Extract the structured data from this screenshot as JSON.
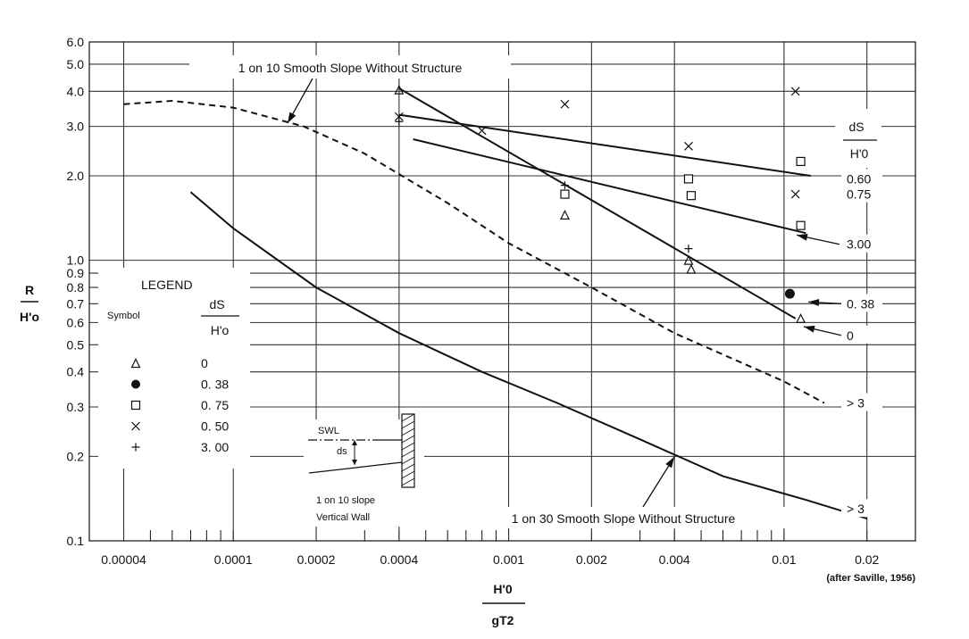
{
  "chart_data": {
    "type": "line",
    "x_scale": "log",
    "y_scale": "log",
    "xlim": [
      3e-05,
      0.03
    ],
    "ylim": [
      0.1,
      6.0
    ],
    "x_ticks": [
      "0.00004",
      "0.0001",
      "0.0002",
      "0.0004",
      "0.001",
      "0.002",
      "0.004",
      "0.01",
      "0.02"
    ],
    "x_tick_values": [
      4e-05,
      0.0001,
      0.0002,
      0.0004,
      0.001,
      0.002,
      0.004,
      0.01,
      0.02
    ],
    "y_ticks": [
      "0.1",
      "0.2",
      "0.3",
      "0.4",
      "0.5",
      "0.6",
      "0.7",
      "0.8",
      "0.9",
      "1.0",
      "2.0",
      "3.0",
      "4.0",
      "5.0",
      "6.0"
    ],
    "y_tick_values": [
      0.1,
      0.2,
      0.3,
      0.4,
      0.5,
      0.6,
      0.7,
      0.8,
      0.9,
      1.0,
      2.0,
      3.0,
      4.0,
      5.0,
      6.0
    ],
    "grid": true,
    "xlabel": {
      "numerator": "H'0",
      "denominator": "gT2"
    },
    "ylabel": {
      "numerator": "R",
      "denominator": "H'o"
    },
    "source_note": "(after Saville, 1956)",
    "right_header": {
      "numerator": "dS",
      "denominator": "H'0"
    },
    "series": [
      {
        "label": "0.60",
        "style": "solid",
        "x": [
          0.0004,
          0.0125
        ],
        "y": [
          3.3,
          2.0
        ]
      },
      {
        "label": "0.75",
        "style": "solid",
        "x": [
          0.00045,
          0.012
        ],
        "y": [
          2.7,
          1.25
        ]
      },
      {
        "label": "3.00",
        "style": "solid",
        "x": [
          0.0004,
          0.011
        ],
        "y": [
          4.1,
          0.62
        ]
      },
      {
        "label": "> 3",
        "style": "dashed",
        "x": [
          4e-05,
          6e-05,
          0.0001,
          0.00018,
          0.0003,
          0.0006,
          0.001,
          0.002,
          0.004,
          0.01,
          0.014
        ],
        "y": [
          3.6,
          3.7,
          3.5,
          3.0,
          2.4,
          1.6,
          1.15,
          0.8,
          0.55,
          0.37,
          0.31
        ]
      },
      {
        "label": "> 3",
        "style": "solid",
        "x": [
          7e-05,
          0.0001,
          0.0002,
          0.0004,
          0.0008,
          0.0015,
          0.003,
          0.006,
          0.012,
          0.02
        ],
        "y": [
          1.75,
          1.3,
          0.8,
          0.55,
          0.4,
          0.31,
          0.23,
          0.17,
          0.14,
          0.12
        ]
      }
    ],
    "line_labels": [
      {
        "text": "0.60",
        "y": 1.95
      },
      {
        "text": "0.75",
        "y": 1.72
      },
      {
        "text": "3.00",
        "y": 1.14
      },
      {
        "text": "0. 38",
        "y": 0.7
      },
      {
        "text": "0",
        "y": 0.54
      },
      {
        "text": "> 3",
        "y": 0.31
      },
      {
        "text": "> 3",
        "y": 0.13
      }
    ],
    "annotations": [
      {
        "text": "1 on 10 Smooth Slope Without Structure"
      },
      {
        "text": "1 on 30 Smooth Slope Without Structure"
      }
    ],
    "points": [
      {
        "symbol": "triangle",
        "x": 0.0004,
        "y": 4.05
      },
      {
        "symbol": "x",
        "x": 0.0004,
        "y": 3.25
      },
      {
        "symbol": "plus",
        "x": 0.0004,
        "y": 3.12
      },
      {
        "symbol": "x",
        "x": 0.0008,
        "y": 2.9
      },
      {
        "symbol": "x",
        "x": 0.0016,
        "y": 3.6
      },
      {
        "symbol": "plus",
        "x": 0.0016,
        "y": 1.85
      },
      {
        "symbol": "square",
        "x": 0.0016,
        "y": 1.72
      },
      {
        "symbol": "triangle",
        "x": 0.0016,
        "y": 1.45
      },
      {
        "symbol": "x",
        "x": 0.0045,
        "y": 2.55
      },
      {
        "symbol": "square",
        "x": 0.0045,
        "y": 1.95
      },
      {
        "symbol": "square",
        "x": 0.0046,
        "y": 1.7
      },
      {
        "symbol": "plus",
        "x": 0.0045,
        "y": 1.1
      },
      {
        "symbol": "triangle",
        "x": 0.0045,
        "y": 1.0
      },
      {
        "symbol": "triangle",
        "x": 0.0046,
        "y": 0.93
      },
      {
        "symbol": "x",
        "x": 0.011,
        "y": 4.0
      },
      {
        "symbol": "square",
        "x": 0.0115,
        "y": 2.25
      },
      {
        "symbol": "x",
        "x": 0.011,
        "y": 1.72
      },
      {
        "symbol": "square",
        "x": 0.0115,
        "y": 1.33
      },
      {
        "symbol": "dot",
        "x": 0.0105,
        "y": 0.76
      },
      {
        "symbol": "triangle",
        "x": 0.0115,
        "y": 0.62
      }
    ]
  },
  "legend": {
    "title": "LEGEND",
    "symbol_header": "Symbol",
    "ds_header": {
      "numerator": "dS",
      "denominator": "H'o"
    },
    "entries": [
      {
        "symbol": "triangle",
        "value": "0"
      },
      {
        "symbol": "dot",
        "value": "0. 38"
      },
      {
        "symbol": "square",
        "value": "0. 75"
      },
      {
        "symbol": "x",
        "value": "0. 50"
      },
      {
        "symbol": "plus",
        "value": "3. 00"
      }
    ]
  },
  "inset": {
    "swl": "SWL",
    "ds": "ds",
    "slope": "1 on 10 slope",
    "caption": "Vertical Wall"
  }
}
